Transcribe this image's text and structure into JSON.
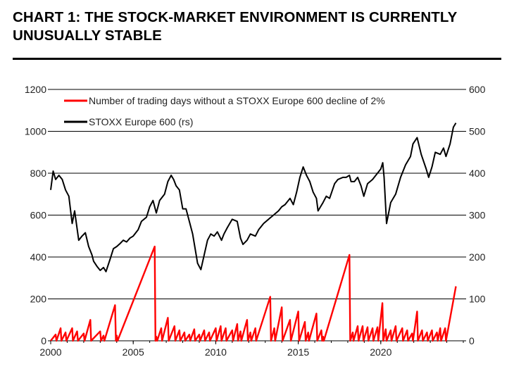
{
  "title": "CHART 1: THE STOCK-MARKET ENVIRONMENT IS CURRENTLY UNUSUALLY STABLE",
  "colors": {
    "stoxx": "#000000",
    "days": "#ff0000",
    "grid": "#000000"
  },
  "chart_data": {
    "type": "line",
    "xlim": [
      2000,
      2025
    ],
    "ylim_left": [
      0,
      1200
    ],
    "ylim_right": [
      0,
      600
    ],
    "grid": true,
    "legend_placement": "top-left",
    "x_ticks": [
      "2000",
      "2005",
      "2010",
      "2015",
      "2020"
    ],
    "y_ticks_left": [
      "0",
      "200",
      "400",
      "600",
      "800",
      "1000",
      "1200"
    ],
    "y_ticks_right": [
      "0",
      "100",
      "200",
      "300",
      "400",
      "500",
      "600"
    ],
    "series": [
      {
        "name": "Number of trading days without a STOXX Europe 600 decline of 2%",
        "axis": "left",
        "color": "#ff0000",
        "x": [
          2000.0,
          2000.3,
          2000.35,
          2000.6,
          2000.65,
          2000.9,
          2000.95,
          2001.3,
          2001.35,
          2001.6,
          2001.65,
          2002.0,
          2002.05,
          2002.4,
          2002.45,
          2003.0,
          2003.05,
          2003.2,
          2003.25,
          2003.9,
          2003.95,
          2004.0,
          2004.05,
          2006.3,
          2006.35,
          2006.4,
          2006.45,
          2006.7,
          2006.75,
          2007.1,
          2007.15,
          2007.5,
          2007.55,
          2007.8,
          2007.85,
          2008.1,
          2008.15,
          2008.4,
          2008.45,
          2008.7,
          2008.75,
          2009.0,
          2009.05,
          2009.3,
          2009.35,
          2009.6,
          2009.65,
          2010.0,
          2010.05,
          2010.3,
          2010.35,
          2010.6,
          2010.65,
          2011.0,
          2011.05,
          2011.3,
          2011.35,
          2011.5,
          2011.55,
          2011.9,
          2011.95,
          2012.1,
          2012.15,
          2012.4,
          2012.45,
          2013.3,
          2013.35,
          2013.55,
          2013.6,
          2014.0,
          2014.05,
          2014.5,
          2014.55,
          2015.0,
          2015.05,
          2015.4,
          2015.45,
          2015.6,
          2015.65,
          2016.1,
          2016.15,
          2016.4,
          2016.45,
          2016.5,
          2016.55,
          2018.1,
          2018.15,
          2018.3,
          2018.35,
          2018.6,
          2018.65,
          2018.9,
          2018.95,
          2019.2,
          2019.25,
          2019.5,
          2019.55,
          2019.8,
          2019.85,
          2020.1,
          2020.15,
          2020.3,
          2020.35,
          2020.6,
          2020.65,
          2020.9,
          2020.95,
          2021.3,
          2021.35,
          2021.6,
          2021.65,
          2021.9,
          2021.95,
          2022.2,
          2022.25,
          2022.5,
          2022.55,
          2022.8,
          2022.85,
          2023.1,
          2023.15,
          2023.4,
          2023.45,
          2023.6,
          2023.65,
          2023.9,
          2023.95,
          2024.55
        ],
        "values": [
          0,
          30,
          0,
          60,
          0,
          40,
          0,
          60,
          0,
          45,
          0,
          35,
          0,
          100,
          0,
          45,
          0,
          25,
          0,
          170,
          0,
          25,
          0,
          450,
          0,
          20,
          0,
          60,
          0,
          110,
          0,
          70,
          0,
          50,
          0,
          40,
          0,
          30,
          0,
          55,
          0,
          30,
          0,
          50,
          0,
          40,
          0,
          60,
          0,
          70,
          0,
          60,
          0,
          50,
          0,
          80,
          0,
          45,
          0,
          100,
          0,
          40,
          0,
          60,
          0,
          210,
          0,
          60,
          0,
          160,
          0,
          100,
          0,
          140,
          0,
          90,
          0,
          40,
          0,
          130,
          0,
          50,
          0,
          20,
          0,
          410,
          0,
          40,
          0,
          70,
          0,
          70,
          0,
          65,
          0,
          60,
          0,
          65,
          0,
          180,
          0,
          55,
          0,
          50,
          0,
          70,
          0,
          60,
          0,
          50,
          0,
          35,
          0,
          140,
          0,
          50,
          0,
          40,
          0,
          50,
          0,
          40,
          0,
          60,
          0,
          60,
          0,
          260
        ]
      },
      {
        "name": "STOXX Europe 600 (rs)",
        "axis": "right",
        "color": "#000000",
        "x": [
          2000.0,
          2000.15,
          2000.3,
          2000.5,
          2000.7,
          2000.9,
          2001.1,
          2001.3,
          2001.45,
          2001.7,
          2001.9,
          2002.1,
          2002.3,
          2002.5,
          2002.6,
          2002.8,
          2003.0,
          2003.2,
          2003.35,
          2003.6,
          2003.8,
          2004.0,
          2004.2,
          2004.4,
          2004.6,
          2004.8,
          2005.0,
          2005.3,
          2005.5,
          2005.8,
          2006.0,
          2006.2,
          2006.4,
          2006.6,
          2006.9,
          2007.1,
          2007.3,
          2007.45,
          2007.6,
          2007.8,
          2008.0,
          2008.2,
          2008.4,
          2008.6,
          2008.75,
          2008.9,
          2009.1,
          2009.3,
          2009.5,
          2009.7,
          2009.9,
          2010.1,
          2010.35,
          2010.5,
          2010.7,
          2011.0,
          2011.3,
          2011.5,
          2011.65,
          2011.9,
          2012.1,
          2012.4,
          2012.6,
          2012.9,
          2013.2,
          2013.5,
          2013.8,
          2014.0,
          2014.2,
          2014.5,
          2014.7,
          2014.9,
          2015.1,
          2015.3,
          2015.5,
          2015.7,
          2015.9,
          2016.1,
          2016.2,
          2016.5,
          2016.7,
          2016.9,
          2017.2,
          2017.4,
          2017.7,
          2017.9,
          2018.1,
          2018.2,
          2018.4,
          2018.6,
          2018.8,
          2018.97,
          2019.2,
          2019.5,
          2019.8,
          2020.0,
          2020.12,
          2020.2,
          2020.35,
          2020.6,
          2020.9,
          2021.2,
          2021.5,
          2021.8,
          2021.95,
          2022.2,
          2022.45,
          2022.75,
          2022.9,
          2023.1,
          2023.3,
          2023.6,
          2023.8,
          2023.95,
          2024.2,
          2024.4,
          2024.55
        ],
        "values": [
          360,
          405,
          385,
          395,
          385,
          360,
          345,
          280,
          310,
          240,
          250,
          258,
          225,
          205,
          190,
          178,
          168,
          175,
          165,
          195,
          220,
          225,
          232,
          240,
          236,
          245,
          250,
          265,
          285,
          295,
          320,
          335,
          305,
          335,
          350,
          380,
          395,
          385,
          370,
          360,
          315,
          315,
          285,
          255,
          220,
          185,
          170,
          205,
          240,
          255,
          250,
          260,
          240,
          255,
          270,
          290,
          285,
          245,
          230,
          240,
          255,
          250,
          265,
          280,
          290,
          300,
          310,
          320,
          325,
          340,
          325,
          355,
          390,
          415,
          395,
          380,
          355,
          340,
          310,
          330,
          345,
          340,
          375,
          385,
          390,
          390,
          395,
          380,
          380,
          390,
          370,
          345,
          375,
          385,
          400,
          410,
          425,
          390,
          280,
          330,
          350,
          390,
          420,
          440,
          470,
          485,
          445,
          410,
          390,
          415,
          450,
          445,
          460,
          440,
          470,
          510,
          520
        ]
      }
    ]
  },
  "legend": {
    "days_label": "Number of trading days without a STOXX Europe 600 decline of 2%",
    "stoxx_label": "STOXX Europe 600 (rs)"
  }
}
